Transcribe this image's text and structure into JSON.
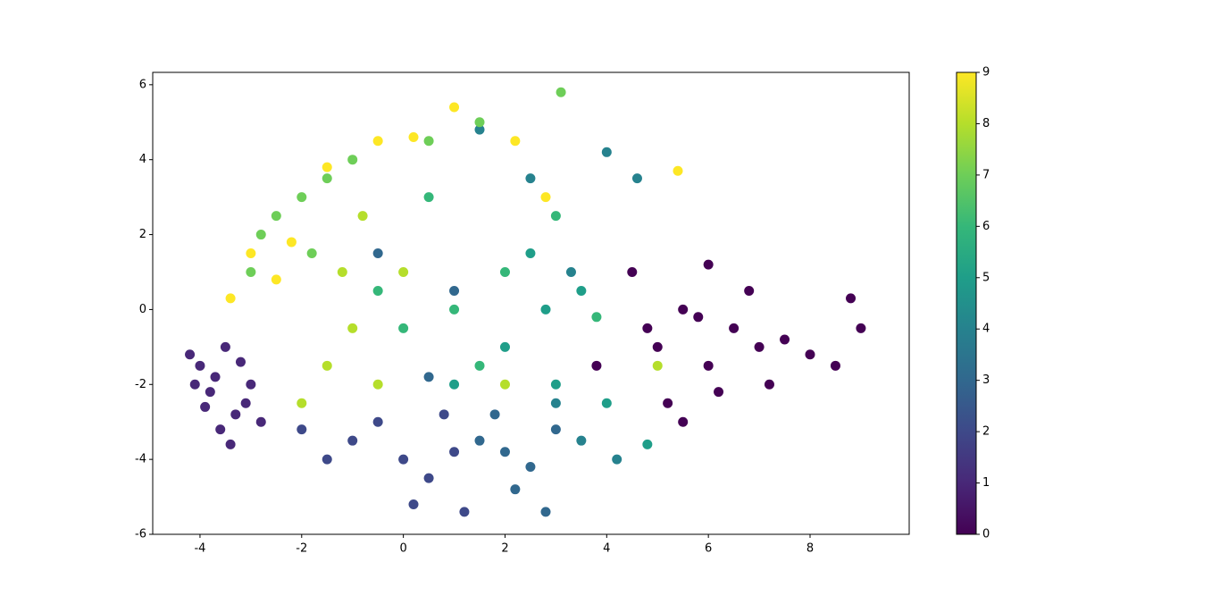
{
  "chart_data": {
    "type": "scatter",
    "x": [
      -4.0,
      -3.8,
      -3.5,
      -3.3,
      -3.9,
      -3.6,
      -3.0,
      -3.2,
      -4.2,
      -3.7,
      -2.8,
      -3.4,
      -4.1,
      -3.1,
      5.0,
      5.5,
      6.0,
      6.5,
      7.0,
      7.5,
      6.2,
      5.8,
      8.0,
      8.5,
      9.0,
      6.8,
      5.2,
      4.5,
      7.2,
      6.0,
      4.8,
      3.8,
      8.8,
      5.5,
      -1.0,
      0.0,
      0.5,
      -0.5,
      1.0,
      -1.5,
      0.2,
      1.2,
      -2.0,
      0.8,
      1.5,
      2.0,
      2.5,
      1.8,
      3.0,
      2.2,
      0.5,
      1.0,
      -0.5,
      2.8,
      3.5,
      4.2,
      3.0,
      4.0,
      2.5,
      4.6,
      3.3,
      1.5,
      2.0,
      3.0,
      4.0,
      3.5,
      2.5,
      4.8,
      1.0,
      2.8,
      1.0,
      2.0,
      0.0,
      3.0,
      -0.5,
      1.5,
      3.8,
      0.5,
      -2.5,
      -2.0,
      -1.5,
      -3.0,
      -1.0,
      0.5,
      3.1,
      -2.8,
      1.5,
      -1.8,
      -1.5,
      -1.0,
      -0.5,
      -2.0,
      -1.2,
      0.0,
      2.0,
      5.0,
      -0.8,
      -3.0,
      -2.5,
      -3.4,
      -1.5,
      -0.5,
      1.0,
      2.2,
      2.8,
      5.4,
      -2.2,
      0.2
    ],
    "y": [
      -1.5,
      -2.2,
      -1.0,
      -2.8,
      -2.6,
      -3.2,
      -2.0,
      -1.4,
      -1.2,
      -1.8,
      -3.0,
      -3.6,
      -2.0,
      -2.5,
      -1.0,
      0.0,
      -1.5,
      -0.5,
      -1.0,
      -0.8,
      -2.2,
      -0.2,
      -1.2,
      -1.5,
      -0.5,
      0.5,
      -2.5,
      1.0,
      -2.0,
      1.2,
      -0.5,
      -1.5,
      0.3,
      -3.0,
      -3.5,
      -4.0,
      -4.5,
      -3.0,
      -3.8,
      -4.0,
      -5.2,
      -5.4,
      -3.2,
      -2.8,
      -3.5,
      -3.8,
      -4.2,
      -2.8,
      -3.2,
      -4.8,
      -1.8,
      0.5,
      1.5,
      -5.4,
      -3.5,
      -4.0,
      -2.5,
      4.2,
      3.5,
      3.5,
      1.0,
      4.8,
      -1.0,
      -2.0,
      -2.5,
      0.5,
      1.5,
      -3.6,
      -2.0,
      0.0,
      0.0,
      1.0,
      -0.5,
      2.5,
      0.5,
      -1.5,
      -0.2,
      3.0,
      2.5,
      3.0,
      3.5,
      1.0,
      4.0,
      4.5,
      5.8,
      2.0,
      5.0,
      1.5,
      -1.5,
      -0.5,
      -2.0,
      -2.5,
      1.0,
      1.0,
      -2.0,
      -1.5,
      2.5,
      1.5,
      0.8,
      0.3,
      3.8,
      4.5,
      5.4,
      4.5,
      3.0,
      3.7,
      1.8,
      4.6
    ],
    "c": [
      1,
      1,
      1,
      1,
      1,
      1,
      1,
      1,
      1,
      1,
      1,
      1,
      1,
      1,
      0,
      0,
      0,
      0,
      0,
      0,
      0,
      0,
      0,
      0,
      0,
      0,
      0,
      0,
      0,
      0,
      0,
      0,
      0,
      0,
      2,
      2,
      2,
      2,
      2,
      2,
      2,
      2,
      2,
      2,
      3,
      3,
      3,
      3,
      3,
      3,
      3,
      3,
      3,
      3,
      4,
      4,
      4,
      4,
      4,
      4,
      4,
      4,
      5,
      5,
      5,
      5,
      5,
      5,
      5,
      5,
      6,
      6,
      6,
      6,
      6,
      6,
      6,
      6,
      7,
      7,
      7,
      7,
      7,
      7,
      7,
      7,
      7,
      7,
      8,
      8,
      8,
      8,
      8,
      8,
      8,
      8,
      8,
      9,
      9,
      9,
      9,
      9,
      9,
      9,
      9,
      9,
      9,
      9
    ],
    "colormap": [
      "#440154",
      "#482878",
      "#3e4989",
      "#31688e",
      "#26828e",
      "#1f9e89",
      "#35b779",
      "#6ece58",
      "#b5de2b",
      "#fde725"
    ],
    "xlim": [
      -4.93,
      9.95
    ],
    "xticks": [
      -4,
      -2,
      0,
      2,
      4,
      6,
      8
    ],
    "ylim": [
      -6,
      6.33
    ],
    "yticks": [
      -6,
      -4,
      -2,
      0,
      2,
      4,
      6
    ],
    "clim": [
      0,
      9
    ],
    "cticks": [
      0,
      1,
      2,
      3,
      4,
      5,
      6,
      7,
      8,
      9
    ]
  }
}
